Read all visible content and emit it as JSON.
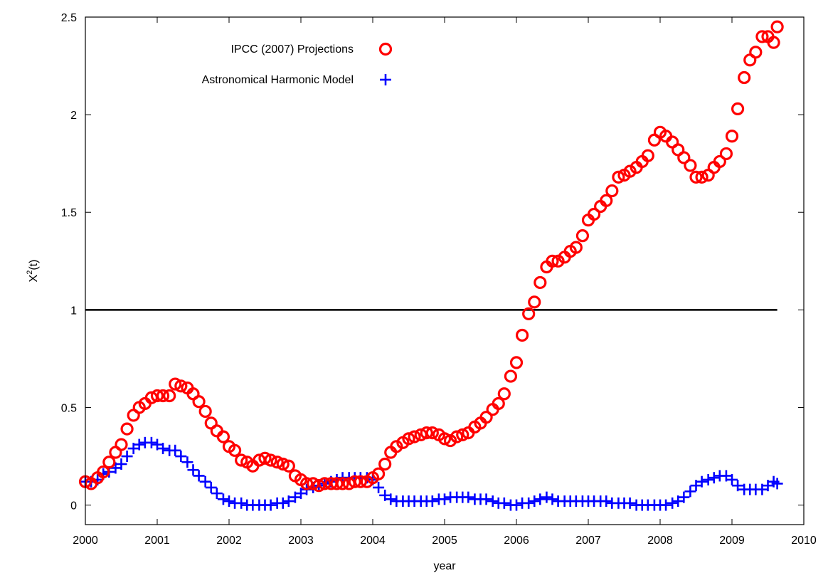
{
  "chart_data": {
    "type": "scatter",
    "xlabel": "year",
    "ylabel_base": "X",
    "ylabel_sup": "2",
    "ylabel_tail": "(t)",
    "xlim": [
      2000,
      2010
    ],
    "ylim": [
      -0.1,
      2.5
    ],
    "x_ticks": [
      2000,
      2001,
      2002,
      2003,
      2004,
      2005,
      2006,
      2007,
      2008,
      2009,
      2010
    ],
    "x_tick_labels": [
      "2000",
      "2001",
      "2002",
      "2003",
      "2004",
      "2005",
      "2006",
      "2007",
      "2008",
      "2009",
      "2010"
    ],
    "y_ticks": [
      0,
      0.5,
      1,
      1.5,
      2,
      2.5
    ],
    "y_tick_labels": [
      "0",
      "0.5",
      "1",
      "1.5",
      "2",
      "2.5"
    ],
    "grid": false,
    "legend_position": "top-left",
    "reference_line": {
      "y": 1,
      "x_start": 2000,
      "x_end": 2009.63,
      "color": "#000000"
    },
    "series": [
      {
        "name": "IPCC (2007) Projections",
        "marker": "circle",
        "color": "#ff0000",
        "points": [
          [
            2000.0,
            0.12
          ],
          [
            2000.08,
            0.11
          ],
          [
            2000.17,
            0.14
          ],
          [
            2000.25,
            0.17
          ],
          [
            2000.33,
            0.22
          ],
          [
            2000.42,
            0.27
          ],
          [
            2000.5,
            0.31
          ],
          [
            2000.58,
            0.39
          ],
          [
            2000.67,
            0.46
          ],
          [
            2000.75,
            0.5
          ],
          [
            2000.83,
            0.52
          ],
          [
            2000.92,
            0.55
          ],
          [
            2001.0,
            0.56
          ],
          [
            2001.08,
            0.56
          ],
          [
            2001.17,
            0.56
          ],
          [
            2001.25,
            0.62
          ],
          [
            2001.33,
            0.61
          ],
          [
            2001.42,
            0.6
          ],
          [
            2001.5,
            0.57
          ],
          [
            2001.58,
            0.53
          ],
          [
            2001.67,
            0.48
          ],
          [
            2001.75,
            0.42
          ],
          [
            2001.83,
            0.38
          ],
          [
            2001.92,
            0.35
          ],
          [
            2002.0,
            0.3
          ],
          [
            2002.08,
            0.28
          ],
          [
            2002.17,
            0.23
          ],
          [
            2002.25,
            0.22
          ],
          [
            2002.33,
            0.2
          ],
          [
            2002.42,
            0.23
          ],
          [
            2002.5,
            0.24
          ],
          [
            2002.58,
            0.23
          ],
          [
            2002.67,
            0.22
          ],
          [
            2002.75,
            0.21
          ],
          [
            2002.83,
            0.2
          ],
          [
            2002.92,
            0.15
          ],
          [
            2003.0,
            0.13
          ],
          [
            2003.08,
            0.11
          ],
          [
            2003.17,
            0.11
          ],
          [
            2003.25,
            0.1
          ],
          [
            2003.33,
            0.11
          ],
          [
            2003.42,
            0.11
          ],
          [
            2003.5,
            0.11
          ],
          [
            2003.58,
            0.11
          ],
          [
            2003.67,
            0.11
          ],
          [
            2003.75,
            0.12
          ],
          [
            2003.83,
            0.12
          ],
          [
            2003.92,
            0.12
          ],
          [
            2004.0,
            0.14
          ],
          [
            2004.08,
            0.16
          ],
          [
            2004.17,
            0.21
          ],
          [
            2004.25,
            0.27
          ],
          [
            2004.33,
            0.3
          ],
          [
            2004.42,
            0.32
          ],
          [
            2004.5,
            0.34
          ],
          [
            2004.58,
            0.35
          ],
          [
            2004.67,
            0.36
          ],
          [
            2004.75,
            0.37
          ],
          [
            2004.83,
            0.37
          ],
          [
            2004.92,
            0.36
          ],
          [
            2005.0,
            0.34
          ],
          [
            2005.08,
            0.33
          ],
          [
            2005.17,
            0.35
          ],
          [
            2005.25,
            0.36
          ],
          [
            2005.33,
            0.37
          ],
          [
            2005.42,
            0.4
          ],
          [
            2005.5,
            0.42
          ],
          [
            2005.58,
            0.45
          ],
          [
            2005.67,
            0.49
          ],
          [
            2005.75,
            0.52
          ],
          [
            2005.83,
            0.57
          ],
          [
            2005.92,
            0.66
          ],
          [
            2006.0,
            0.73
          ],
          [
            2006.08,
            0.87
          ],
          [
            2006.17,
            0.98
          ],
          [
            2006.25,
            1.04
          ],
          [
            2006.33,
            1.14
          ],
          [
            2006.42,
            1.22
          ],
          [
            2006.5,
            1.25
          ],
          [
            2006.58,
            1.25
          ],
          [
            2006.67,
            1.27
          ],
          [
            2006.75,
            1.3
          ],
          [
            2006.83,
            1.32
          ],
          [
            2006.92,
            1.38
          ],
          [
            2007.0,
            1.46
          ],
          [
            2007.08,
            1.49
          ],
          [
            2007.17,
            1.53
          ],
          [
            2007.25,
            1.56
          ],
          [
            2007.33,
            1.61
          ],
          [
            2007.42,
            1.68
          ],
          [
            2007.5,
            1.69
          ],
          [
            2007.58,
            1.71
          ],
          [
            2007.67,
            1.73
          ],
          [
            2007.75,
            1.76
          ],
          [
            2007.83,
            1.79
          ],
          [
            2007.92,
            1.87
          ],
          [
            2008.0,
            1.91
          ],
          [
            2008.08,
            1.89
          ],
          [
            2008.17,
            1.86
          ],
          [
            2008.25,
            1.82
          ],
          [
            2008.33,
            1.78
          ],
          [
            2008.42,
            1.74
          ],
          [
            2008.5,
            1.68
          ],
          [
            2008.58,
            1.68
          ],
          [
            2008.67,
            1.69
          ],
          [
            2008.75,
            1.73
          ],
          [
            2008.83,
            1.76
          ],
          [
            2008.92,
            1.8
          ],
          [
            2009.0,
            1.89
          ],
          [
            2009.08,
            2.03
          ],
          [
            2009.17,
            2.19
          ],
          [
            2009.25,
            2.28
          ],
          [
            2009.33,
            2.32
          ],
          [
            2009.42,
            2.4
          ],
          [
            2009.5,
            2.4
          ],
          [
            2009.58,
            2.37
          ],
          [
            2009.63,
            2.45
          ]
        ]
      },
      {
        "name": "Astronomical Harmonic Model",
        "marker": "plus",
        "color": "#0000ff",
        "points": [
          [
            2000.0,
            0.12
          ],
          [
            2000.08,
            0.12
          ],
          [
            2000.17,
            0.13
          ],
          [
            2000.25,
            0.16
          ],
          [
            2000.33,
            0.17
          ],
          [
            2000.42,
            0.19
          ],
          [
            2000.5,
            0.21
          ],
          [
            2000.58,
            0.25
          ],
          [
            2000.67,
            0.29
          ],
          [
            2000.75,
            0.31
          ],
          [
            2000.83,
            0.32
          ],
          [
            2000.92,
            0.32
          ],
          [
            2001.0,
            0.31
          ],
          [
            2001.08,
            0.29
          ],
          [
            2001.17,
            0.28
          ],
          [
            2001.25,
            0.28
          ],
          [
            2001.33,
            0.25
          ],
          [
            2001.42,
            0.22
          ],
          [
            2001.5,
            0.18
          ],
          [
            2001.58,
            0.15
          ],
          [
            2001.67,
            0.12
          ],
          [
            2001.75,
            0.09
          ],
          [
            2001.83,
            0.06
          ],
          [
            2001.92,
            0.03
          ],
          [
            2002.0,
            0.02
          ],
          [
            2002.08,
            0.01
          ],
          [
            2002.17,
            0.01
          ],
          [
            2002.25,
            0.0
          ],
          [
            2002.33,
            0.0
          ],
          [
            2002.42,
            0.0
          ],
          [
            2002.5,
            0.0
          ],
          [
            2002.58,
            0.0
          ],
          [
            2002.67,
            0.01
          ],
          [
            2002.75,
            0.01
          ],
          [
            2002.83,
            0.02
          ],
          [
            2002.92,
            0.04
          ],
          [
            2003.0,
            0.06
          ],
          [
            2003.08,
            0.08
          ],
          [
            2003.17,
            0.09
          ],
          [
            2003.25,
            0.1
          ],
          [
            2003.33,
            0.11
          ],
          [
            2003.42,
            0.12
          ],
          [
            2003.5,
            0.13
          ],
          [
            2003.58,
            0.14
          ],
          [
            2003.67,
            0.14
          ],
          [
            2003.75,
            0.14
          ],
          [
            2003.83,
            0.14
          ],
          [
            2003.92,
            0.14
          ],
          [
            2004.0,
            0.13
          ],
          [
            2004.08,
            0.09
          ],
          [
            2004.17,
            0.05
          ],
          [
            2004.25,
            0.03
          ],
          [
            2004.33,
            0.02
          ],
          [
            2004.42,
            0.02
          ],
          [
            2004.5,
            0.02
          ],
          [
            2004.58,
            0.02
          ],
          [
            2004.67,
            0.02
          ],
          [
            2004.75,
            0.02
          ],
          [
            2004.83,
            0.02
          ],
          [
            2004.92,
            0.03
          ],
          [
            2005.0,
            0.03
          ],
          [
            2005.08,
            0.04
          ],
          [
            2005.17,
            0.04
          ],
          [
            2005.25,
            0.04
          ],
          [
            2005.33,
            0.04
          ],
          [
            2005.42,
            0.03
          ],
          [
            2005.5,
            0.03
          ],
          [
            2005.58,
            0.03
          ],
          [
            2005.67,
            0.02
          ],
          [
            2005.75,
            0.01
          ],
          [
            2005.83,
            0.01
          ],
          [
            2005.92,
            0.0
          ],
          [
            2006.0,
            0.0
          ],
          [
            2006.08,
            0.01
          ],
          [
            2006.17,
            0.01
          ],
          [
            2006.25,
            0.02
          ],
          [
            2006.33,
            0.03
          ],
          [
            2006.42,
            0.04
          ],
          [
            2006.5,
            0.03
          ],
          [
            2006.58,
            0.02
          ],
          [
            2006.67,
            0.02
          ],
          [
            2006.75,
            0.02
          ],
          [
            2006.83,
            0.02
          ],
          [
            2006.92,
            0.02
          ],
          [
            2007.0,
            0.02
          ],
          [
            2007.08,
            0.02
          ],
          [
            2007.17,
            0.02
          ],
          [
            2007.25,
            0.02
          ],
          [
            2007.33,
            0.01
          ],
          [
            2007.42,
            0.01
          ],
          [
            2007.5,
            0.01
          ],
          [
            2007.58,
            0.01
          ],
          [
            2007.67,
            0.0
          ],
          [
            2007.75,
            0.0
          ],
          [
            2007.83,
            0.0
          ],
          [
            2007.92,
            0.0
          ],
          [
            2008.0,
            0.0
          ],
          [
            2008.08,
            0.0
          ],
          [
            2008.17,
            0.01
          ],
          [
            2008.25,
            0.02
          ],
          [
            2008.33,
            0.04
          ],
          [
            2008.42,
            0.07
          ],
          [
            2008.5,
            0.1
          ],
          [
            2008.58,
            0.12
          ],
          [
            2008.67,
            0.13
          ],
          [
            2008.75,
            0.14
          ],
          [
            2008.83,
            0.15
          ],
          [
            2008.92,
            0.15
          ],
          [
            2009.0,
            0.13
          ],
          [
            2009.08,
            0.1
          ],
          [
            2009.17,
            0.08
          ],
          [
            2009.25,
            0.08
          ],
          [
            2009.33,
            0.08
          ],
          [
            2009.42,
            0.08
          ],
          [
            2009.5,
            0.1
          ],
          [
            2009.58,
            0.12
          ],
          [
            2009.63,
            0.11
          ]
        ]
      }
    ]
  }
}
